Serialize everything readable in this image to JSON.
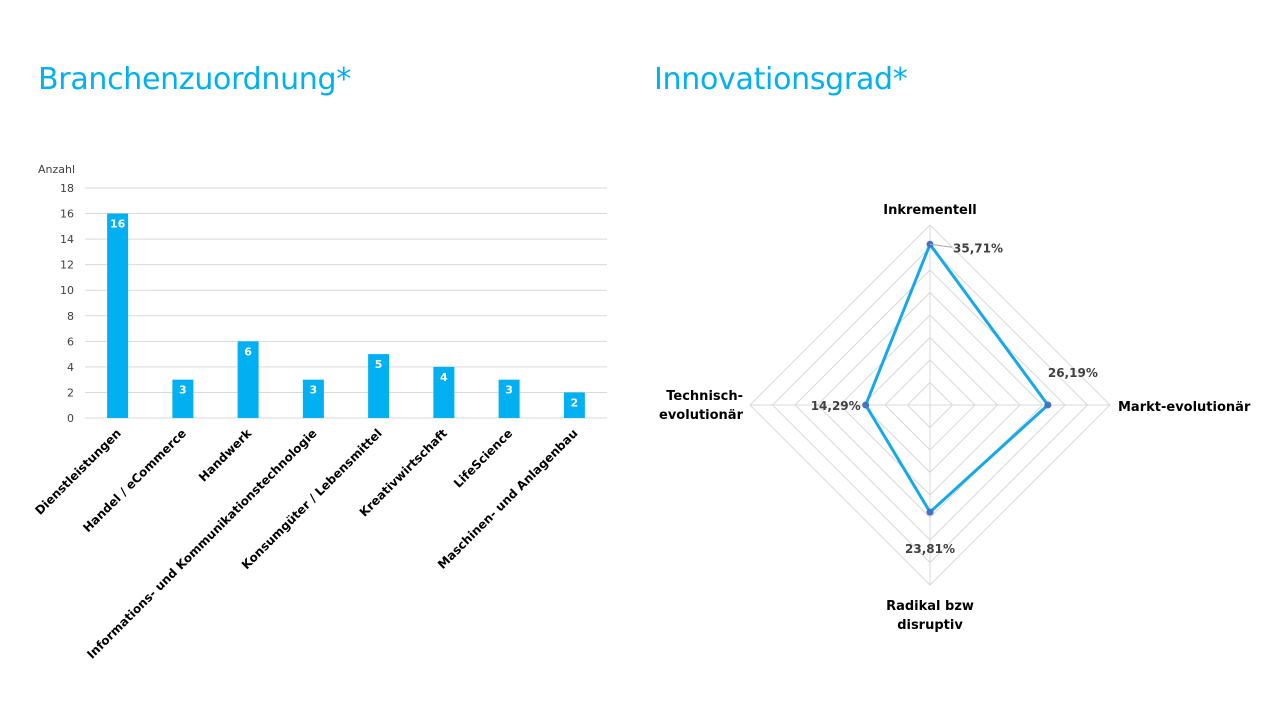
{
  "slide": {
    "left_title": "Branchenzuordnung*",
    "right_title": "Innovationsgrad*"
  },
  "colors": {
    "accent": "#00B0F0",
    "radar_line": "#16A9E8",
    "radar_marker": "#4472C4",
    "grid": "#D9D9D9",
    "text": "#404040"
  },
  "chart_data": [
    {
      "type": "bar",
      "ylabel": "Anzahl",
      "ylim": [
        0,
        18
      ],
      "yticks": [
        0,
        2,
        4,
        6,
        8,
        10,
        12,
        14,
        16,
        18
      ],
      "categories": [
        "Dienstleistungen",
        "Handel / eCommerce",
        "Handwerk",
        "Informations- und Kommunikationstechnologie",
        "Konsumgüter / Lebensmittel",
        "Kreativwirtschaft",
        "LifeScience",
        "Maschinen- und Anlagenbau"
      ],
      "values": [
        16,
        3,
        6,
        3,
        5,
        4,
        3,
        2
      ],
      "data_labels": [
        "16",
        "3",
        "6",
        "3",
        "5",
        "4",
        "3",
        "2"
      ],
      "grid": true
    },
    {
      "type": "radar",
      "axes": [
        "Inkrementell",
        "Markt-evolutionär",
        "Radikal bzw. disruptiv",
        "Technisch-evolutionär"
      ],
      "values": [
        35.71,
        26.19,
        23.81,
        14.29
      ],
      "data_labels": [
        "35,71%",
        "26,19%",
        "23,81%",
        "14,29%"
      ],
      "rlim": [
        0,
        40
      ],
      "grid_levels": 8,
      "grid": true
    }
  ]
}
